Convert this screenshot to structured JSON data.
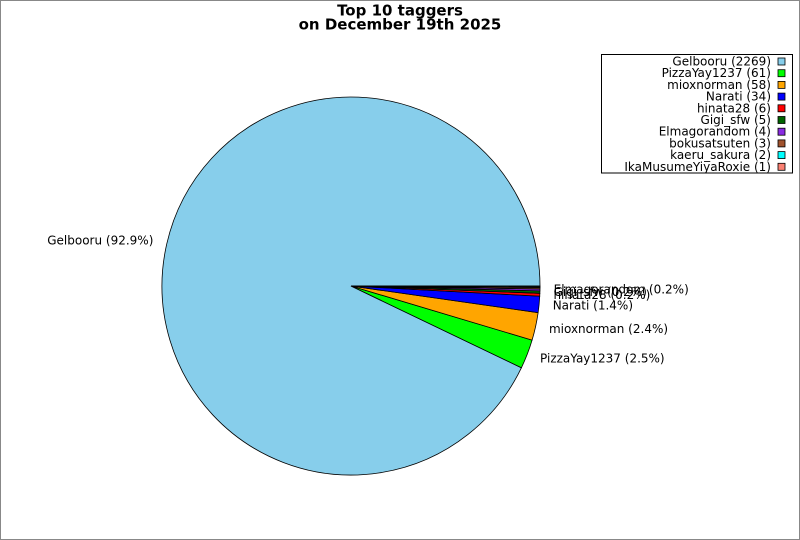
{
  "chart_data": {
    "type": "pie",
    "title": [
      "Top 10 taggers",
      "on December 19th 2025"
    ],
    "categories": [
      "Gelbooru",
      "PizzaYay1237",
      "mioxnorman",
      "Narati",
      "hinata28",
      "Gigi_sfw",
      "Elmagorandom",
      "bokusatsuten",
      "kaeru_sakura",
      "IkaMusumeYiyaRoxie"
    ],
    "values": [
      2269,
      61,
      58,
      34,
      6,
      5,
      4,
      3,
      2,
      1
    ],
    "value_labels": [
      "Gelbooru (92.9%)",
      "PizzaYay1237 (2.5%)",
      "mioxnorman (2.4%)",
      "Narati (1.4%)",
      "hinata28 (0.2%)",
      "Gigi_sfw (0.2%)",
      "Elmagorandom (0.2%)",
      null,
      null,
      null
    ],
    "legend_labels": [
      "Gelbooru (2269)",
      "PizzaYay1237 (61)",
      "mioxnorman (58)",
      "Narati (34)",
      "hinata28 (6)",
      "Gigi_sfw (5)",
      "Elmagorandom (4)",
      "bokusatsuten (3)",
      "kaeru_sakura (2)",
      "IkaMusumeYiyaRoxie (1)"
    ],
    "colors": [
      "#87ceeb",
      "#00ff00",
      "#ffa500",
      "#0000ff",
      "#ff0000",
      "#006400",
      "#8a2be2",
      "#a0522d",
      "#00ffff",
      "#fa8072"
    ],
    "legend": "upper right"
  }
}
